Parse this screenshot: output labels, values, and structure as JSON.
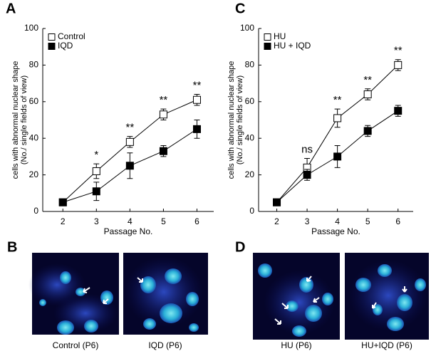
{
  "chart_data": [
    {
      "type": "line",
      "panel": "A",
      "ylabel": [
        "cells with abnormal nuclear shape",
        "(No./ single fields of view)"
      ],
      "xlabel": "Passage No.",
      "x": [
        2,
        3,
        4,
        5,
        6
      ],
      "xlim": [
        1.4,
        6.5
      ],
      "xticks": [
        2,
        3,
        4,
        5,
        6
      ],
      "ylim": [
        0,
        100
      ],
      "yticks": [
        0,
        20,
        40,
        60,
        80,
        100
      ],
      "legend": "top-left",
      "series": [
        {
          "name": "Control",
          "color": "#000000",
          "marker": "open",
          "values": [
            5,
            22,
            38,
            53,
            61
          ],
          "errors": [
            1,
            4,
            3,
            3,
            3
          ]
        },
        {
          "name": "IQD",
          "color": "#000000",
          "marker": "filled",
          "values": [
            5,
            11,
            25,
            33,
            45
          ],
          "errors": [
            1,
            5,
            7,
            3,
            5
          ]
        }
      ],
      "annotations": [
        null,
        "*",
        "**",
        "**",
        "**"
      ]
    },
    {
      "type": "line",
      "panel": "C",
      "ylabel": [
        "cells with abnormal nuclear shape",
        "(No./ single fields of view)"
      ],
      "xlabel": "Passage No.",
      "x": [
        2,
        3,
        4,
        5,
        6
      ],
      "xlim": [
        1.4,
        6.5
      ],
      "xticks": [
        2,
        3,
        4,
        5,
        6
      ],
      "ylim": [
        0,
        100
      ],
      "yticks": [
        0,
        20,
        40,
        60,
        80,
        100
      ],
      "legend": "top-left",
      "series": [
        {
          "name": "HU",
          "color": "#000000",
          "marker": "open",
          "values": [
            5,
            24,
            51,
            64,
            80
          ],
          "errors": [
            1,
            5,
            5,
            3,
            3
          ]
        },
        {
          "name": "HU + IQD",
          "color": "#000000",
          "marker": "filled",
          "values": [
            5,
            20,
            30,
            44,
            55
          ],
          "errors": [
            1,
            3,
            6,
            3,
            3
          ]
        }
      ],
      "annotations": [
        null,
        "ns",
        "**",
        "**",
        "**"
      ]
    }
  ],
  "images": {
    "panels": [
      "B",
      "D"
    ],
    "captions": [
      "Control (P6)",
      "IQD (P6)",
      "HU (P6)",
      "HU+IQD (P6)"
    ]
  }
}
